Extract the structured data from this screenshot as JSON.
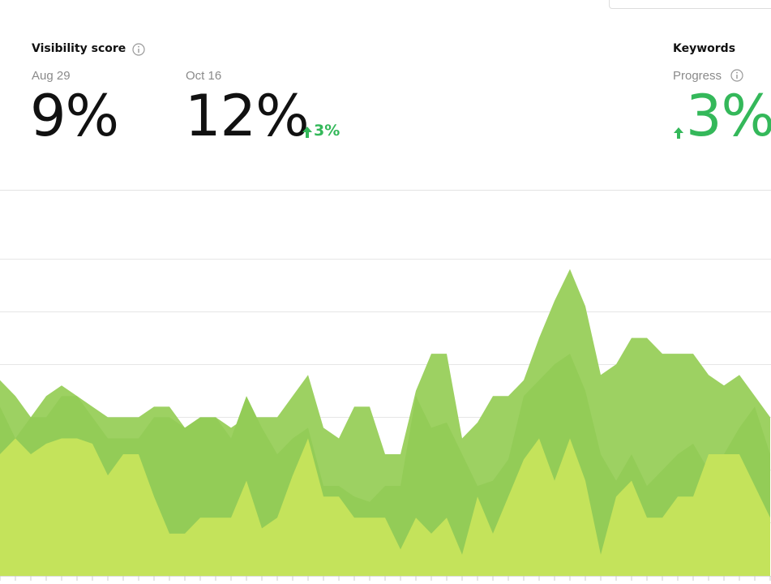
{
  "header": {
    "visibility_label": "Visibility score",
    "start_date": "Aug 29",
    "start_value": "9%",
    "end_date": "Oct 16",
    "end_value": "12%",
    "change": "3%",
    "keywords_label": "Keywords",
    "progress_label": "Progress",
    "progress_value": "3%"
  },
  "chart_data": {
    "type": "area",
    "categories": [
      null,
      null,
      null,
      null,
      null,
      null,
      null,
      null,
      null,
      null,
      null,
      null,
      null,
      null,
      null,
      null,
      null,
      null,
      null,
      null,
      null,
      null,
      null,
      null,
      null,
      null,
      null,
      null,
      null,
      null,
      null,
      null,
      null,
      null,
      null,
      null,
      null,
      null,
      null,
      null,
      null,
      null,
      null,
      null,
      null,
      null,
      null,
      null,
      null,
      null,
      null
    ],
    "ylim": [
      0,
      7.3
    ],
    "series": [
      {
        "color": "#9dd162",
        "values": [
          3.7,
          3.4,
          3.0,
          3.4,
          3.6,
          3.4,
          3.2,
          3.0,
          3.0,
          3.0,
          3.2,
          3.2,
          2.8,
          2.8,
          3.0,
          2.8,
          3.0,
          3.0,
          3.0,
          3.4,
          3.8,
          2.8,
          2.6,
          3.2,
          3.2,
          2.3,
          2.3,
          3.5,
          4.2,
          4.2,
          2.6,
          2.9,
          3.4,
          3.4,
          3.7,
          4.5,
          5.2,
          5.8,
          5.1,
          3.8,
          4.0,
          4.5,
          4.5,
          4.2,
          4.2,
          4.2,
          3.8,
          3.6,
          3.8,
          3.4,
          3.0
        ]
      },
      {
        "color": "#93cc57",
        "values": [
          3.2,
          2.6,
          3.0,
          3.0,
          3.4,
          3.4,
          3.0,
          2.6,
          2.6,
          2.6,
          3.0,
          3.0,
          2.8,
          3.0,
          3.0,
          2.6,
          3.4,
          2.8,
          2.3,
          2.6,
          2.8,
          1.7,
          1.7,
          1.5,
          1.4,
          1.7,
          1.7,
          3.4,
          2.8,
          2.9,
          2.3,
          1.7,
          1.8,
          2.2,
          3.4,
          3.7,
          4.0,
          4.2,
          3.5,
          2.3,
          1.8,
          2.3,
          1.7,
          2.0,
          2.3,
          2.5,
          2.0,
          2.3,
          2.8,
          3.2,
          2.3
        ]
      },
      {
        "color": "#c4e35b",
        "values": [
          2.3,
          2.6,
          2.3,
          2.5,
          2.6,
          2.6,
          2.5,
          1.9,
          2.3,
          2.3,
          1.5,
          0.8,
          0.8,
          1.1,
          1.1,
          1.1,
          1.8,
          0.9,
          1.1,
          1.9,
          2.6,
          1.5,
          1.5,
          1.1,
          1.1,
          1.1,
          0.5,
          1.1,
          0.8,
          1.1,
          0.4,
          1.5,
          0.8,
          1.5,
          2.2,
          2.6,
          1.8,
          2.6,
          1.8,
          0.4,
          1.5,
          1.8,
          1.1,
          1.1,
          1.5,
          1.5,
          2.3,
          2.3,
          2.3,
          1.7,
          1.1
        ]
      }
    ]
  }
}
